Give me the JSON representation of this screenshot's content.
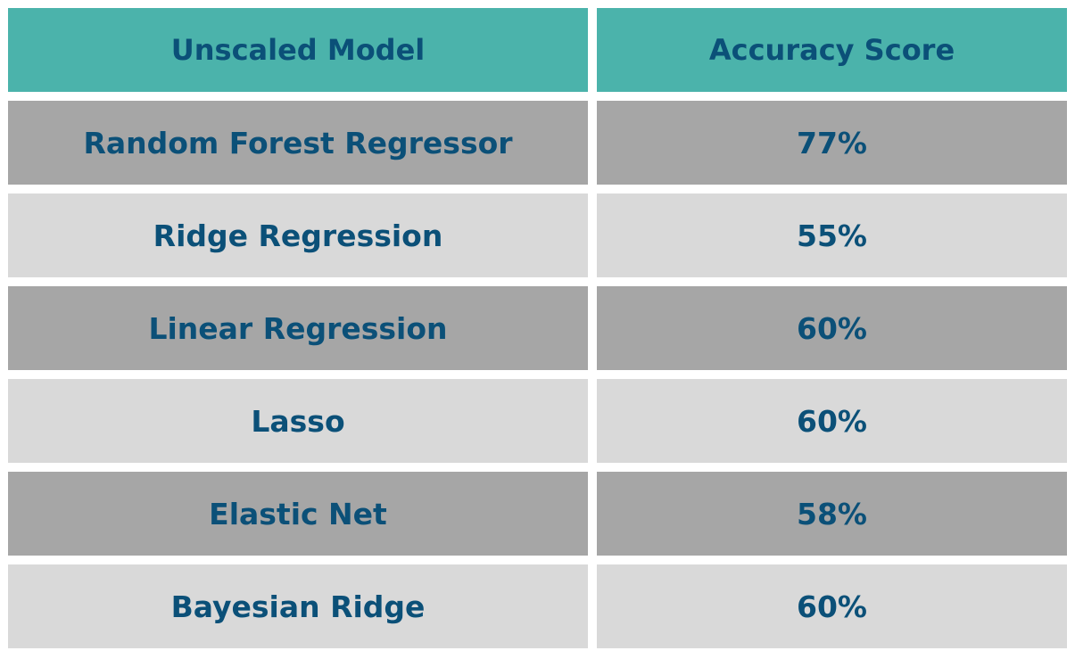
{
  "colors": {
    "header_bg": "#4bb3ab",
    "row_dark_bg": "#a6a6a6",
    "row_light_bg": "#d9d9d9",
    "text": "#0b5078"
  },
  "chart_data": {
    "type": "table",
    "columns": [
      "Unscaled Model",
      "Accuracy Score"
    ],
    "rows": [
      {
        "model": "Random Forest Regressor",
        "score": "77%",
        "score_value": 77
      },
      {
        "model": "Ridge Regression",
        "score": "55%",
        "score_value": 55
      },
      {
        "model": "Linear Regression",
        "score": "60%",
        "score_value": 60
      },
      {
        "model": "Lasso",
        "score": "60%",
        "score_value": 60
      },
      {
        "model": "Elastic Net",
        "score": "58%",
        "score_value": 58
      },
      {
        "model": "Bayesian Ridge",
        "score": "60%",
        "score_value": 60
      }
    ]
  }
}
